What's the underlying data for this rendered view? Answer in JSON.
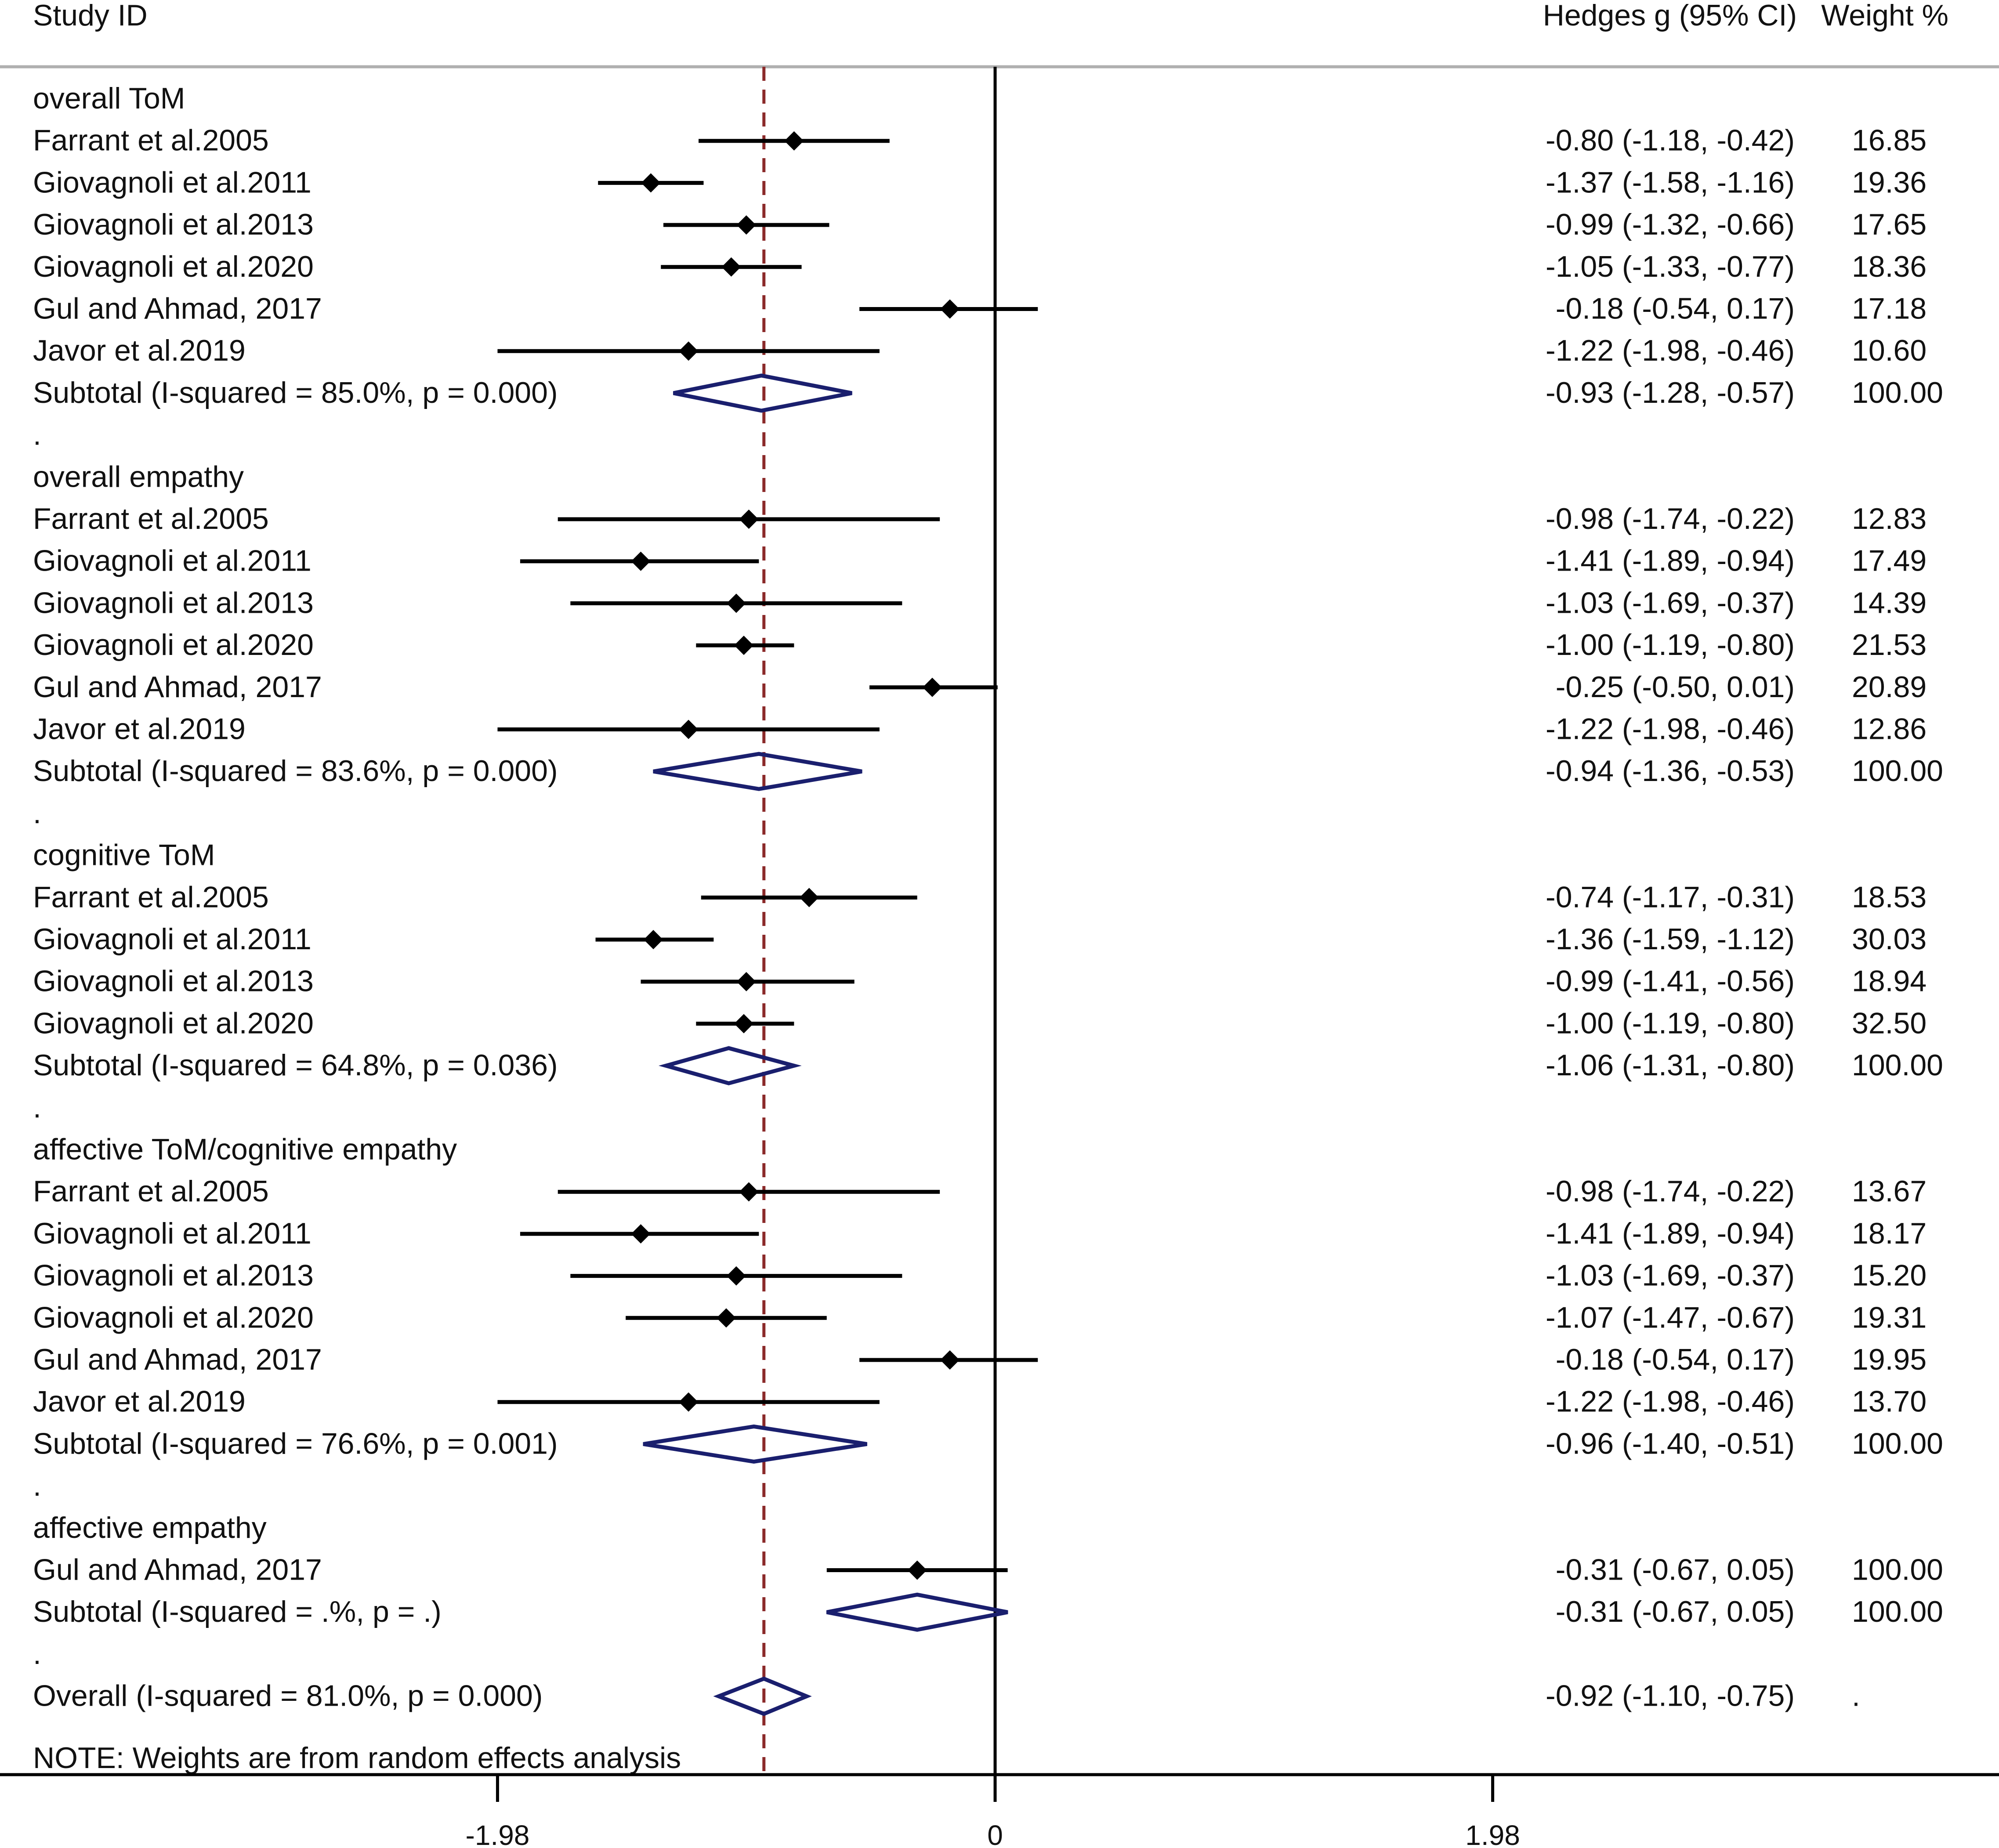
{
  "chart_data": {
    "type": "forest",
    "header": {
      "study": "Study ID",
      "effect": "Hedges g (95% CI)",
      "weight": "Weight %"
    },
    "axis": {
      "min": -3.9,
      "max": 3.9,
      "ticks": [
        {
          "value": -1.98,
          "label": "-1.98"
        },
        {
          "value": 0,
          "label": "0"
        },
        {
          "value": 1.98,
          "label": "1.98"
        }
      ],
      "reference_line": -0.92
    },
    "note": "NOTE: Weights are from random effects analysis",
    "rows": [
      {
        "kind": "group",
        "label": "overall ToM"
      },
      {
        "kind": "study",
        "label": "Farrant et al.2005",
        "est": -0.8,
        "lo": -1.18,
        "hi": -0.42,
        "ci_text": "-0.80 (-1.18, -0.42)",
        "weight": "16.85"
      },
      {
        "kind": "study",
        "label": "Giovagnoli et al.2011",
        "est": -1.37,
        "lo": -1.58,
        "hi": -1.16,
        "ci_text": "-1.37 (-1.58, -1.16)",
        "weight": "19.36"
      },
      {
        "kind": "study",
        "label": "Giovagnoli et al.2013",
        "est": -0.99,
        "lo": -1.32,
        "hi": -0.66,
        "ci_text": "-0.99 (-1.32, -0.66)",
        "weight": "17.65"
      },
      {
        "kind": "study",
        "label": "Giovagnoli et al.2020",
        "est": -1.05,
        "lo": -1.33,
        "hi": -0.77,
        "ci_text": "-1.05 (-1.33, -0.77)",
        "weight": "18.36"
      },
      {
        "kind": "study",
        "label": "Gul and Ahmad, 2017",
        "est": -0.18,
        "lo": -0.54,
        "hi": 0.17,
        "ci_text": "-0.18 (-0.54, 0.17)",
        "weight": "17.18"
      },
      {
        "kind": "study",
        "label": "Javor et al.2019",
        "est": -1.22,
        "lo": -1.98,
        "hi": -0.46,
        "ci_text": "-1.22 (-1.98, -0.46)",
        "weight": "10.60"
      },
      {
        "kind": "subtotal",
        "label": "Subtotal  (I-squared = 85.0%, p = 0.000)",
        "est": -0.93,
        "lo": -1.28,
        "hi": -0.57,
        "ci_text": "-0.93 (-1.28, -0.57)",
        "weight": "100.00"
      },
      {
        "kind": "dot",
        "label": "."
      },
      {
        "kind": "group",
        "label": "overall empathy"
      },
      {
        "kind": "study",
        "label": "Farrant et al.2005",
        "est": -0.98,
        "lo": -1.74,
        "hi": -0.22,
        "ci_text": "-0.98 (-1.74, -0.22)",
        "weight": "12.83"
      },
      {
        "kind": "study",
        "label": "Giovagnoli et al.2011",
        "est": -1.41,
        "lo": -1.89,
        "hi": -0.94,
        "ci_text": "-1.41 (-1.89, -0.94)",
        "weight": "17.49"
      },
      {
        "kind": "study",
        "label": "Giovagnoli et al.2013",
        "est": -1.03,
        "lo": -1.69,
        "hi": -0.37,
        "ci_text": "-1.03 (-1.69, -0.37)",
        "weight": "14.39"
      },
      {
        "kind": "study",
        "label": "Giovagnoli et al.2020",
        "est": -1.0,
        "lo": -1.19,
        "hi": -0.8,
        "ci_text": "-1.00 (-1.19, -0.80)",
        "weight": "21.53"
      },
      {
        "kind": "study",
        "label": "Gul and Ahmad, 2017",
        "est": -0.25,
        "lo": -0.5,
        "hi": 0.01,
        "ci_text": "-0.25 (-0.50, 0.01)",
        "weight": "20.89"
      },
      {
        "kind": "study",
        "label": "Javor et al.2019",
        "est": -1.22,
        "lo": -1.98,
        "hi": -0.46,
        "ci_text": "-1.22 (-1.98, -0.46)",
        "weight": "12.86"
      },
      {
        "kind": "subtotal",
        "label": "Subtotal  (I-squared = 83.6%, p = 0.000)",
        "est": -0.94,
        "lo": -1.36,
        "hi": -0.53,
        "ci_text": "-0.94 (-1.36, -0.53)",
        "weight": "100.00"
      },
      {
        "kind": "dot",
        "label": "."
      },
      {
        "kind": "group",
        "label": "cognitive ToM"
      },
      {
        "kind": "study",
        "label": "Farrant et al.2005",
        "est": -0.74,
        "lo": -1.17,
        "hi": -0.31,
        "ci_text": "-0.74 (-1.17, -0.31)",
        "weight": "18.53"
      },
      {
        "kind": "study",
        "label": "Giovagnoli et al.2011",
        "est": -1.36,
        "lo": -1.59,
        "hi": -1.12,
        "ci_text": "-1.36 (-1.59, -1.12)",
        "weight": "30.03"
      },
      {
        "kind": "study",
        "label": "Giovagnoli et al.2013",
        "est": -0.99,
        "lo": -1.41,
        "hi": -0.56,
        "ci_text": "-0.99 (-1.41, -0.56)",
        "weight": "18.94"
      },
      {
        "kind": "study",
        "label": "Giovagnoli et al.2020",
        "est": -1.0,
        "lo": -1.19,
        "hi": -0.8,
        "ci_text": "-1.00 (-1.19, -0.80)",
        "weight": "32.50"
      },
      {
        "kind": "subtotal",
        "label": "Subtotal  (I-squared = 64.8%, p = 0.036)",
        "est": -1.06,
        "lo": -1.31,
        "hi": -0.8,
        "ci_text": "-1.06 (-1.31, -0.80)",
        "weight": "100.00"
      },
      {
        "kind": "dot",
        "label": "."
      },
      {
        "kind": "group",
        "label": "affective ToM/cognitive empathy"
      },
      {
        "kind": "study",
        "label": "Farrant et al.2005",
        "est": -0.98,
        "lo": -1.74,
        "hi": -0.22,
        "ci_text": "-0.98 (-1.74, -0.22)",
        "weight": "13.67"
      },
      {
        "kind": "study",
        "label": "Giovagnoli et al.2011",
        "est": -1.41,
        "lo": -1.89,
        "hi": -0.94,
        "ci_text": "-1.41 (-1.89, -0.94)",
        "weight": "18.17"
      },
      {
        "kind": "study",
        "label": "Giovagnoli et al.2013",
        "est": -1.03,
        "lo": -1.69,
        "hi": -0.37,
        "ci_text": "-1.03 (-1.69, -0.37)",
        "weight": "15.20"
      },
      {
        "kind": "study",
        "label": "Giovagnoli et al.2020",
        "est": -1.07,
        "lo": -1.47,
        "hi": -0.67,
        "ci_text": "-1.07 (-1.47, -0.67)",
        "weight": "19.31"
      },
      {
        "kind": "study",
        "label": "Gul and Ahmad, 2017",
        "est": -0.18,
        "lo": -0.54,
        "hi": 0.17,
        "ci_text": "-0.18 (-0.54, 0.17)",
        "weight": "19.95"
      },
      {
        "kind": "study",
        "label": "Javor et al.2019",
        "est": -1.22,
        "lo": -1.98,
        "hi": -0.46,
        "ci_text": "-1.22 (-1.98, -0.46)",
        "weight": "13.70"
      },
      {
        "kind": "subtotal",
        "label": "Subtotal  (I-squared = 76.6%, p = 0.001)",
        "est": -0.96,
        "lo": -1.4,
        "hi": -0.51,
        "ci_text": "-0.96 (-1.40, -0.51)",
        "weight": "100.00"
      },
      {
        "kind": "dot",
        "label": "."
      },
      {
        "kind": "group",
        "label": "affective empathy"
      },
      {
        "kind": "study",
        "label": "Gul and Ahmad, 2017",
        "est": -0.31,
        "lo": -0.67,
        "hi": 0.05,
        "ci_text": "-0.31 (-0.67, 0.05)",
        "weight": "100.00"
      },
      {
        "kind": "subtotal",
        "label": "Subtotal  (I-squared = .%, p = .)",
        "est": -0.31,
        "lo": -0.67,
        "hi": 0.05,
        "ci_text": "-0.31 (-0.67, 0.05)",
        "weight": "100.00"
      },
      {
        "kind": "dot",
        "label": "."
      },
      {
        "kind": "overall",
        "label": "Overall  (I-squared = 81.0%, p = 0.000)",
        "est": -0.92,
        "lo": -1.1,
        "hi": -0.75,
        "ci_text": "-0.92 (-1.10, -0.75)",
        "weight": "."
      }
    ],
    "colors": {
      "marker": "#000000",
      "diamond": "#1a1f6e",
      "reference_line": "#8b2a2a",
      "axis": "#000000"
    }
  }
}
